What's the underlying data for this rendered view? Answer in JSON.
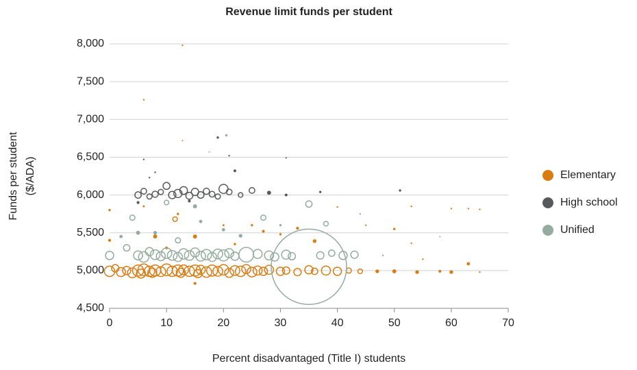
{
  "chart_data": {
    "type": "bubble",
    "title": "Revenue limit funds per student",
    "xlabel": "Percent disadvantaged (Title I) students",
    "ylabel": [
      "Funds per student",
      "($/ADA)"
    ],
    "xlim": [
      0,
      70
    ],
    "xticks": [
      0,
      10,
      20,
      30,
      40,
      50,
      60,
      70
    ],
    "ylim": [
      4500,
      8000
    ],
    "yticks": [
      {
        "value": 4500,
        "label": "4,500"
      },
      {
        "value": 5000,
        "label": "5,000"
      },
      {
        "value": 5500,
        "label": "5,500"
      },
      {
        "value": 6000,
        "label": "6,000"
      },
      {
        "value": 6500,
        "label": "6,500"
      },
      {
        "value": 7000,
        "label": "7,000"
      },
      {
        "value": 7500,
        "label": "7,500"
      },
      {
        "value": 8000,
        "label": "8,000"
      }
    ],
    "grid": true,
    "legend": "right",
    "series": [
      {
        "name": "Elementary",
        "color": "#d97c12",
        "x": [
          0,
          1,
          2,
          3,
          4,
          5,
          5.5,
          6,
          7,
          7.5,
          8,
          9,
          10,
          11,
          12,
          12.5,
          13,
          14,
          15,
          15.5,
          16,
          17,
          18,
          19,
          20,
          21,
          22,
          23,
          24,
          25,
          26,
          27,
          28,
          30,
          31,
          33,
          35,
          36,
          38,
          40,
          42,
          44,
          47,
          50,
          54,
          58,
          60,
          63,
          65,
          12.8,
          6,
          12.8,
          0,
          6,
          11.5,
          12,
          15,
          20,
          25,
          30,
          33,
          40,
          45,
          50,
          53,
          55,
          53,
          60,
          63,
          65,
          8,
          10,
          0,
          15,
          27,
          36,
          22
        ],
        "values": [
          4990,
          5030,
          4980,
          5000,
          4970,
          5000,
          4960,
          5010,
          4990,
          4970,
          5000,
          4985,
          5010,
          4990,
          5000,
          4970,
          5010,
          4990,
          5000,
          4960,
          5010,
          4980,
          5000,
          4990,
          5010,
          4970,
          5000,
          4990,
          5020,
          4980,
          5000,
          4990,
          5010,
          4990,
          5000,
          4980,
          5010,
          4990,
          5000,
          4990,
          5000,
          4990,
          4990,
          4990,
          4980,
          4990,
          4980,
          5090,
          4980,
          7980,
          7260,
          6720,
          5800,
          5850,
          5680,
          5750,
          5450,
          5600,
          5600,
          5480,
          5560,
          5840,
          5600,
          5550,
          5360,
          5150,
          5850,
          5820,
          5820,
          5810,
          5450,
          5300,
          5400,
          4830,
          5520,
          5390,
          5350
        ],
        "sizes": [
          40,
          20,
          30,
          25,
          35,
          45,
          30,
          50,
          40,
          30,
          45,
          35,
          50,
          40,
          45,
          30,
          35,
          40,
          45,
          25,
          30,
          40,
          45,
          35,
          40,
          30,
          35,
          40,
          30,
          35,
          30,
          25,
          30,
          25,
          20,
          20,
          25,
          15,
          30,
          25,
          10,
          8,
          5,
          6,
          5,
          3,
          5,
          4,
          1,
          1,
          1,
          0.5,
          2,
          1.5,
          8,
          2,
          6,
          1.5,
          2,
          2,
          3,
          1,
          1,
          2,
          1,
          1,
          1,
          1,
          1,
          1,
          6,
          3,
          3,
          3,
          3,
          5,
          2
        ]
      },
      {
        "name": "High school",
        "color": "#58595b",
        "x": [
          5,
          6,
          7,
          8,
          9,
          10,
          11,
          12,
          13,
          14,
          15,
          16,
          17,
          18,
          19,
          20,
          21,
          23,
          25,
          28,
          31,
          37,
          51,
          6,
          8,
          7,
          19,
          21,
          22,
          31,
          5,
          14
        ],
        "values": [
          6000,
          6050,
          5980,
          6010,
          6040,
          6120,
          6000,
          6020,
          6060,
          5990,
          6040,
          6000,
          6050,
          6010,
          5980,
          6080,
          6040,
          6000,
          6060,
          6030,
          6000,
          6040,
          6060,
          6470,
          6300,
          6230,
          6760,
          6520,
          6320,
          6490,
          5900,
          5920
        ],
        "sizes": [
          15,
          12,
          10,
          14,
          10,
          18,
          20,
          25,
          22,
          18,
          20,
          16,
          14,
          12,
          10,
          30,
          12,
          8,
          12,
          6,
          3,
          2,
          2,
          1,
          1,
          1,
          2,
          1,
          3,
          0.8,
          3,
          3
        ]
      },
      {
        "name": "Unified",
        "color": "#94aba0",
        "x": [
          0,
          2,
          3,
          4,
          5,
          6,
          7,
          8,
          9,
          10,
          11,
          12,
          13,
          14,
          15,
          16,
          17,
          18,
          19,
          20,
          21,
          22,
          24,
          26,
          27,
          28,
          29,
          31,
          32,
          35,
          35,
          38,
          37,
          39,
          41,
          43,
          10,
          15,
          20,
          20.5,
          17.5,
          12,
          8,
          16,
          30,
          44,
          58,
          48,
          5,
          23
        ],
        "values": [
          5200,
          5450,
          5300,
          5700,
          5200,
          5180,
          5250,
          5210,
          5190,
          5230,
          5200,
          5180,
          5220,
          5200,
          5240,
          5190,
          5210,
          5180,
          5220,
          5200,
          5230,
          5190,
          5210,
          5220,
          5700,
          5200,
          5180,
          5210,
          5190,
          5050,
          5880,
          5620,
          5200,
          5230,
          5200,
          5210,
          5900,
          5850,
          5540,
          6790,
          6570,
          5400,
          5500,
          5650,
          5600,
          5750,
          5450,
          5200,
          5500,
          5460
        ],
        "sizes": [
          25,
          4,
          15,
          10,
          30,
          40,
          25,
          35,
          30,
          40,
          35,
          30,
          40,
          35,
          30,
          35,
          40,
          30,
          35,
          45,
          30,
          25,
          80,
          30,
          10,
          30,
          25,
          30,
          20,
          2100,
          15,
          8,
          20,
          15,
          25,
          20,
          8,
          6,
          4,
          2,
          0.5,
          10,
          5,
          4,
          2,
          1,
          0.5,
          1,
          6,
          5
        ]
      }
    ]
  }
}
